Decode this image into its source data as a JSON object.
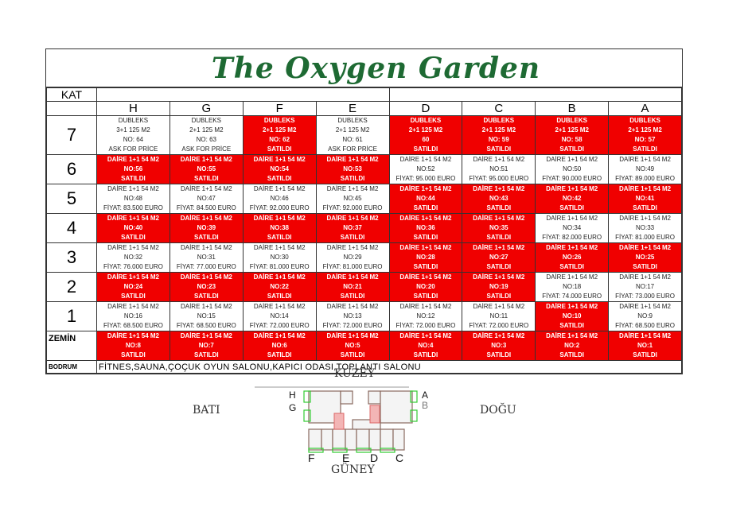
{
  "title": "The Oxygen Garden",
  "kat_label": "KAT",
  "columns": [
    "H",
    "G",
    "F",
    "E",
    "D",
    "C",
    "B",
    "A"
  ],
  "floors": [
    {
      "label": "7",
      "cells": [
        {
          "lines": [
            "DUBLEKS",
            "3+1 125 M2",
            "NO: 64",
            "ASK FOR PRİCE"
          ],
          "sold": false
        },
        {
          "lines": [
            "DUBLEKS",
            "2+1 125 M2",
            "NO: 63",
            "ASK FOR PRİCE"
          ],
          "sold": false
        },
        {
          "lines": [
            "DUBLEKS",
            "2+1 125 M2",
            "NO: 62",
            "SATILDI"
          ],
          "sold": true
        },
        {
          "lines": [
            "DUBLEKS",
            "2+1 125 M2",
            "NO: 61",
            "ASK FOR PRİCE"
          ],
          "sold": false
        },
        {
          "lines": [
            "DUBLEKS",
            "2+1 125 M2",
            "60",
            "SATILDI"
          ],
          "sold": true
        },
        {
          "lines": [
            "DUBLEKS",
            "2+1 125 M2",
            "NO: 59",
            "SATILDI"
          ],
          "sold": true
        },
        {
          "lines": [
            "DUBLEKS",
            "2+1 125 M2",
            "NO: 58",
            "SATILDI"
          ],
          "sold": true
        },
        {
          "lines": [
            "DUBLEKS",
            "2+1 125 M2",
            "NO: 57",
            "SATILDI"
          ],
          "sold": true
        }
      ]
    },
    {
      "label": "6",
      "cells": [
        {
          "lines": [
            "DAİRE 1+1 54 M2",
            "NO:56",
            "SATILDI"
          ],
          "sold": true
        },
        {
          "lines": [
            "DAİRE 1+1 54 M2",
            "NO:55",
            "SATILDI"
          ],
          "sold": true
        },
        {
          "lines": [
            "DAİRE 1+1 54 M2",
            "NO:54",
            "SATILDI"
          ],
          "sold": true
        },
        {
          "lines": [
            "DAİRE 1+1 54 M2",
            "NO:53",
            "SATILDI"
          ],
          "sold": true
        },
        {
          "lines": [
            "DAİRE 1+1 54 M2",
            "NO:52",
            "FİYAT: 95.000 EURO"
          ],
          "sold": false
        },
        {
          "lines": [
            "DAİRE 1+1 54 M2",
            "NO:51",
            "FİYAT: 95.000 EURO"
          ],
          "sold": false
        },
        {
          "lines": [
            "DAİRE 1+1 54 M2",
            "NO:50",
            "FİYAT: 90.000 EURO"
          ],
          "sold": false
        },
        {
          "lines": [
            "DAİRE 1+1 54 M2",
            "NO:49",
            "FİYAT: 89.000 EURO"
          ],
          "sold": false
        }
      ]
    },
    {
      "label": "5",
      "cells": [
        {
          "lines": [
            "DAİRE 1+1 54 M2",
            "NO:48",
            "FİYAT: 83.500 EURO"
          ],
          "sold": false
        },
        {
          "lines": [
            "DAİRE 1+1 54 M2",
            "NO:47",
            "FİYAT: 84.500 EURO"
          ],
          "sold": false
        },
        {
          "lines": [
            "DAİRE 1+1 54 M2",
            "NO:46",
            "FİYAT: 92.000 EURO"
          ],
          "sold": false
        },
        {
          "lines": [
            "DAİRE 1+1 54 M2",
            "NO:45",
            "FİYAT: 92.000 EURO"
          ],
          "sold": false
        },
        {
          "lines": [
            "DAİRE 1+1 54 M2",
            "NO:44",
            "SATILDI"
          ],
          "sold": true
        },
        {
          "lines": [
            "DAİRE 1+1 54 M2",
            "NO:43",
            "SATILDI"
          ],
          "sold": true
        },
        {
          "lines": [
            "DAİRE 1+1 54 M2",
            "NO:42",
            "SATILDI"
          ],
          "sold": true
        },
        {
          "lines": [
            "DAİRE 1+1 54 M2",
            "NO:41",
            "SATILDI"
          ],
          "sold": true
        }
      ]
    },
    {
      "label": "4",
      "cells": [
        {
          "lines": [
            "DAİRE 1+1 54 M2",
            "NO:40",
            "SATILDI"
          ],
          "sold": true
        },
        {
          "lines": [
            "DAİRE 1+1 54 M2",
            "NO:39",
            "SATILDI"
          ],
          "sold": true
        },
        {
          "lines": [
            "DAİRE 1+1 54 M2",
            "NO:38",
            "SATILDI"
          ],
          "sold": true
        },
        {
          "lines": [
            "DAİRE 1+1 54 M2",
            "NO:37",
            "SATILDI"
          ],
          "sold": true
        },
        {
          "lines": [
            "DAİRE 1+1 54 M2",
            "NO:36",
            "SATILDI"
          ],
          "sold": true
        },
        {
          "lines": [
            "DAİRE 1+1 54 M2",
            "NO:35",
            "SATILDI"
          ],
          "sold": true
        },
        {
          "lines": [
            "DAİRE 1+1 54 M2",
            "NO:34",
            "FİYAT: 82.000 EURO"
          ],
          "sold": false
        },
        {
          "lines": [
            "DAİRE 1+1 54 M2",
            "NO:33",
            "FİYAT: 81.000 EURO"
          ],
          "sold": false
        }
      ]
    },
    {
      "label": "3",
      "cells": [
        {
          "lines": [
            "DAİRE 1+1 54 M2",
            "NO:32",
            "FİYAT: 76.000 EURO"
          ],
          "sold": false
        },
        {
          "lines": [
            "DAİRE 1+1 54 M2",
            "NO:31",
            "FİYAT: 77.000 EURO"
          ],
          "sold": false
        },
        {
          "lines": [
            "DAİRE 1+1 54 M2",
            "NO:30",
            "FİYAT: 81.000 EURO"
          ],
          "sold": false
        },
        {
          "lines": [
            "DAİRE 1+1 54 M2",
            "NO:29",
            "FİYAT: 81.000 EURO"
          ],
          "sold": false
        },
        {
          "lines": [
            "DAİRE 1+1 54 M2",
            "NO:28",
            "SATILDI"
          ],
          "sold": true
        },
        {
          "lines": [
            "DAİRE 1+1 54 M2",
            "NO:27",
            "SATILDI"
          ],
          "sold": true
        },
        {
          "lines": [
            "DAİRE 1+1 54 M2",
            "NO:26",
            "SATILDI"
          ],
          "sold": true
        },
        {
          "lines": [
            "DAİRE 1+1 54 M2",
            "NO:25",
            "SATILDI"
          ],
          "sold": true
        }
      ]
    },
    {
      "label": "2",
      "cells": [
        {
          "lines": [
            "DAİRE 1+1 54 M2",
            "NO:24",
            "SATILDI"
          ],
          "sold": true
        },
        {
          "lines": [
            "DAİRE 1+1 54 M2",
            "NO:23",
            "SATILDI"
          ],
          "sold": true
        },
        {
          "lines": [
            "DAİRE 1+1 54 M2",
            "NO:22",
            "SATILDI"
          ],
          "sold": true
        },
        {
          "lines": [
            "DAİRE 1+1 54 M2",
            "NO:21",
            "SATILDI"
          ],
          "sold": true
        },
        {
          "lines": [
            "DAİRE 1+1 54 M2",
            "NO:20",
            "SATILDI"
          ],
          "sold": true
        },
        {
          "lines": [
            "DAİRE 1+1 54 M2",
            "NO:19",
            "SATILDI"
          ],
          "sold": true
        },
        {
          "lines": [
            "DAİRE 1+1 54 M2",
            "NO:18",
            "FİYAT: 74.000 EURO"
          ],
          "sold": false
        },
        {
          "lines": [
            "DAİRE 1+1 54 M2",
            "NO:17",
            "FİYAT: 73.000 EURO"
          ],
          "sold": false
        }
      ]
    },
    {
      "label": "1",
      "cells": [
        {
          "lines": [
            "DAİRE 1+1 54 M2",
            "NO:16",
            "FİYAT: 68.500 EURO"
          ],
          "sold": false
        },
        {
          "lines": [
            "DAİRE 1+1 54 M2",
            "NO:15",
            "FİYAT: 68.500 EURO"
          ],
          "sold": false
        },
        {
          "lines": [
            "DAİRE 1+1 54 M2",
            "NO:14",
            "FİYAT: 72.000 EURO"
          ],
          "sold": false
        },
        {
          "lines": [
            "DAİRE 1+1 54 M2",
            "NO:13",
            "FİYAT: 72.000 EURO"
          ],
          "sold": false
        },
        {
          "lines": [
            "DAİRE 1+1 54 M2",
            "NO:12",
            "FİYAT: 72.000 EURO"
          ],
          "sold": false
        },
        {
          "lines": [
            "DAİRE 1+1 54 M2",
            "NO:11",
            "FİYAT: 72.000 EURO"
          ],
          "sold": false
        },
        {
          "lines": [
            "DAİRE 1+1 54 M2",
            "NO:10",
            "SATILDI"
          ],
          "sold": true
        },
        {
          "lines": [
            "DAİRE 1+1 54 M2",
            "NO:9",
            "FİYAT: 68.500 EURO"
          ],
          "sold": false
        }
      ]
    },
    {
      "label": "ZEMİN",
      "cells": [
        {
          "lines": [
            "DAİRE 1+1 54 M2",
            "NO:8",
            "SATILDI"
          ],
          "sold": true
        },
        {
          "lines": [
            "DAİRE 1+1 54 M2",
            "NO:7",
            "SATILDI"
          ],
          "sold": true
        },
        {
          "lines": [
            "DAİRE 1+1 54 M2",
            "NO:6",
            "SATILDI"
          ],
          "sold": true
        },
        {
          "lines": [
            "DAİRE 1+1 54 M2",
            "NO:5",
            "SATILDI"
          ],
          "sold": true
        },
        {
          "lines": [
            "DAİRE 1+1 54 M2",
            "NO:4",
            "SATILDI"
          ],
          "sold": true
        },
        {
          "lines": [
            "DAİRE 1+1 54 M2",
            "NO:3",
            "SATILDI"
          ],
          "sold": true
        },
        {
          "lines": [
            "DAİRE 1+1 54 M2",
            "NO:2",
            "SATILDI"
          ],
          "sold": true
        },
        {
          "lines": [
            "DAİRE 1+1 54 M2",
            "NO:1",
            "SATILDI"
          ],
          "sold": true
        }
      ]
    }
  ],
  "bodrum": {
    "label": "BODRUM",
    "value": "FİTNES,SAUNA,ÇOÇUK  OYUN  SALONU,KAPICI  ODASI,TOPLANTI  SALONU"
  },
  "colors": {
    "sold": "#f00000",
    "title": "#1e6a33"
  },
  "plan": {
    "north": "KUZEY",
    "south": "GÜNEY",
    "west": "BATI",
    "east": "DOĞU",
    "labels": {
      "h": "H",
      "g": "G",
      "a": "A",
      "b": "B",
      "f": "F",
      "e": "E",
      "d": "D",
      "c": "C"
    }
  }
}
